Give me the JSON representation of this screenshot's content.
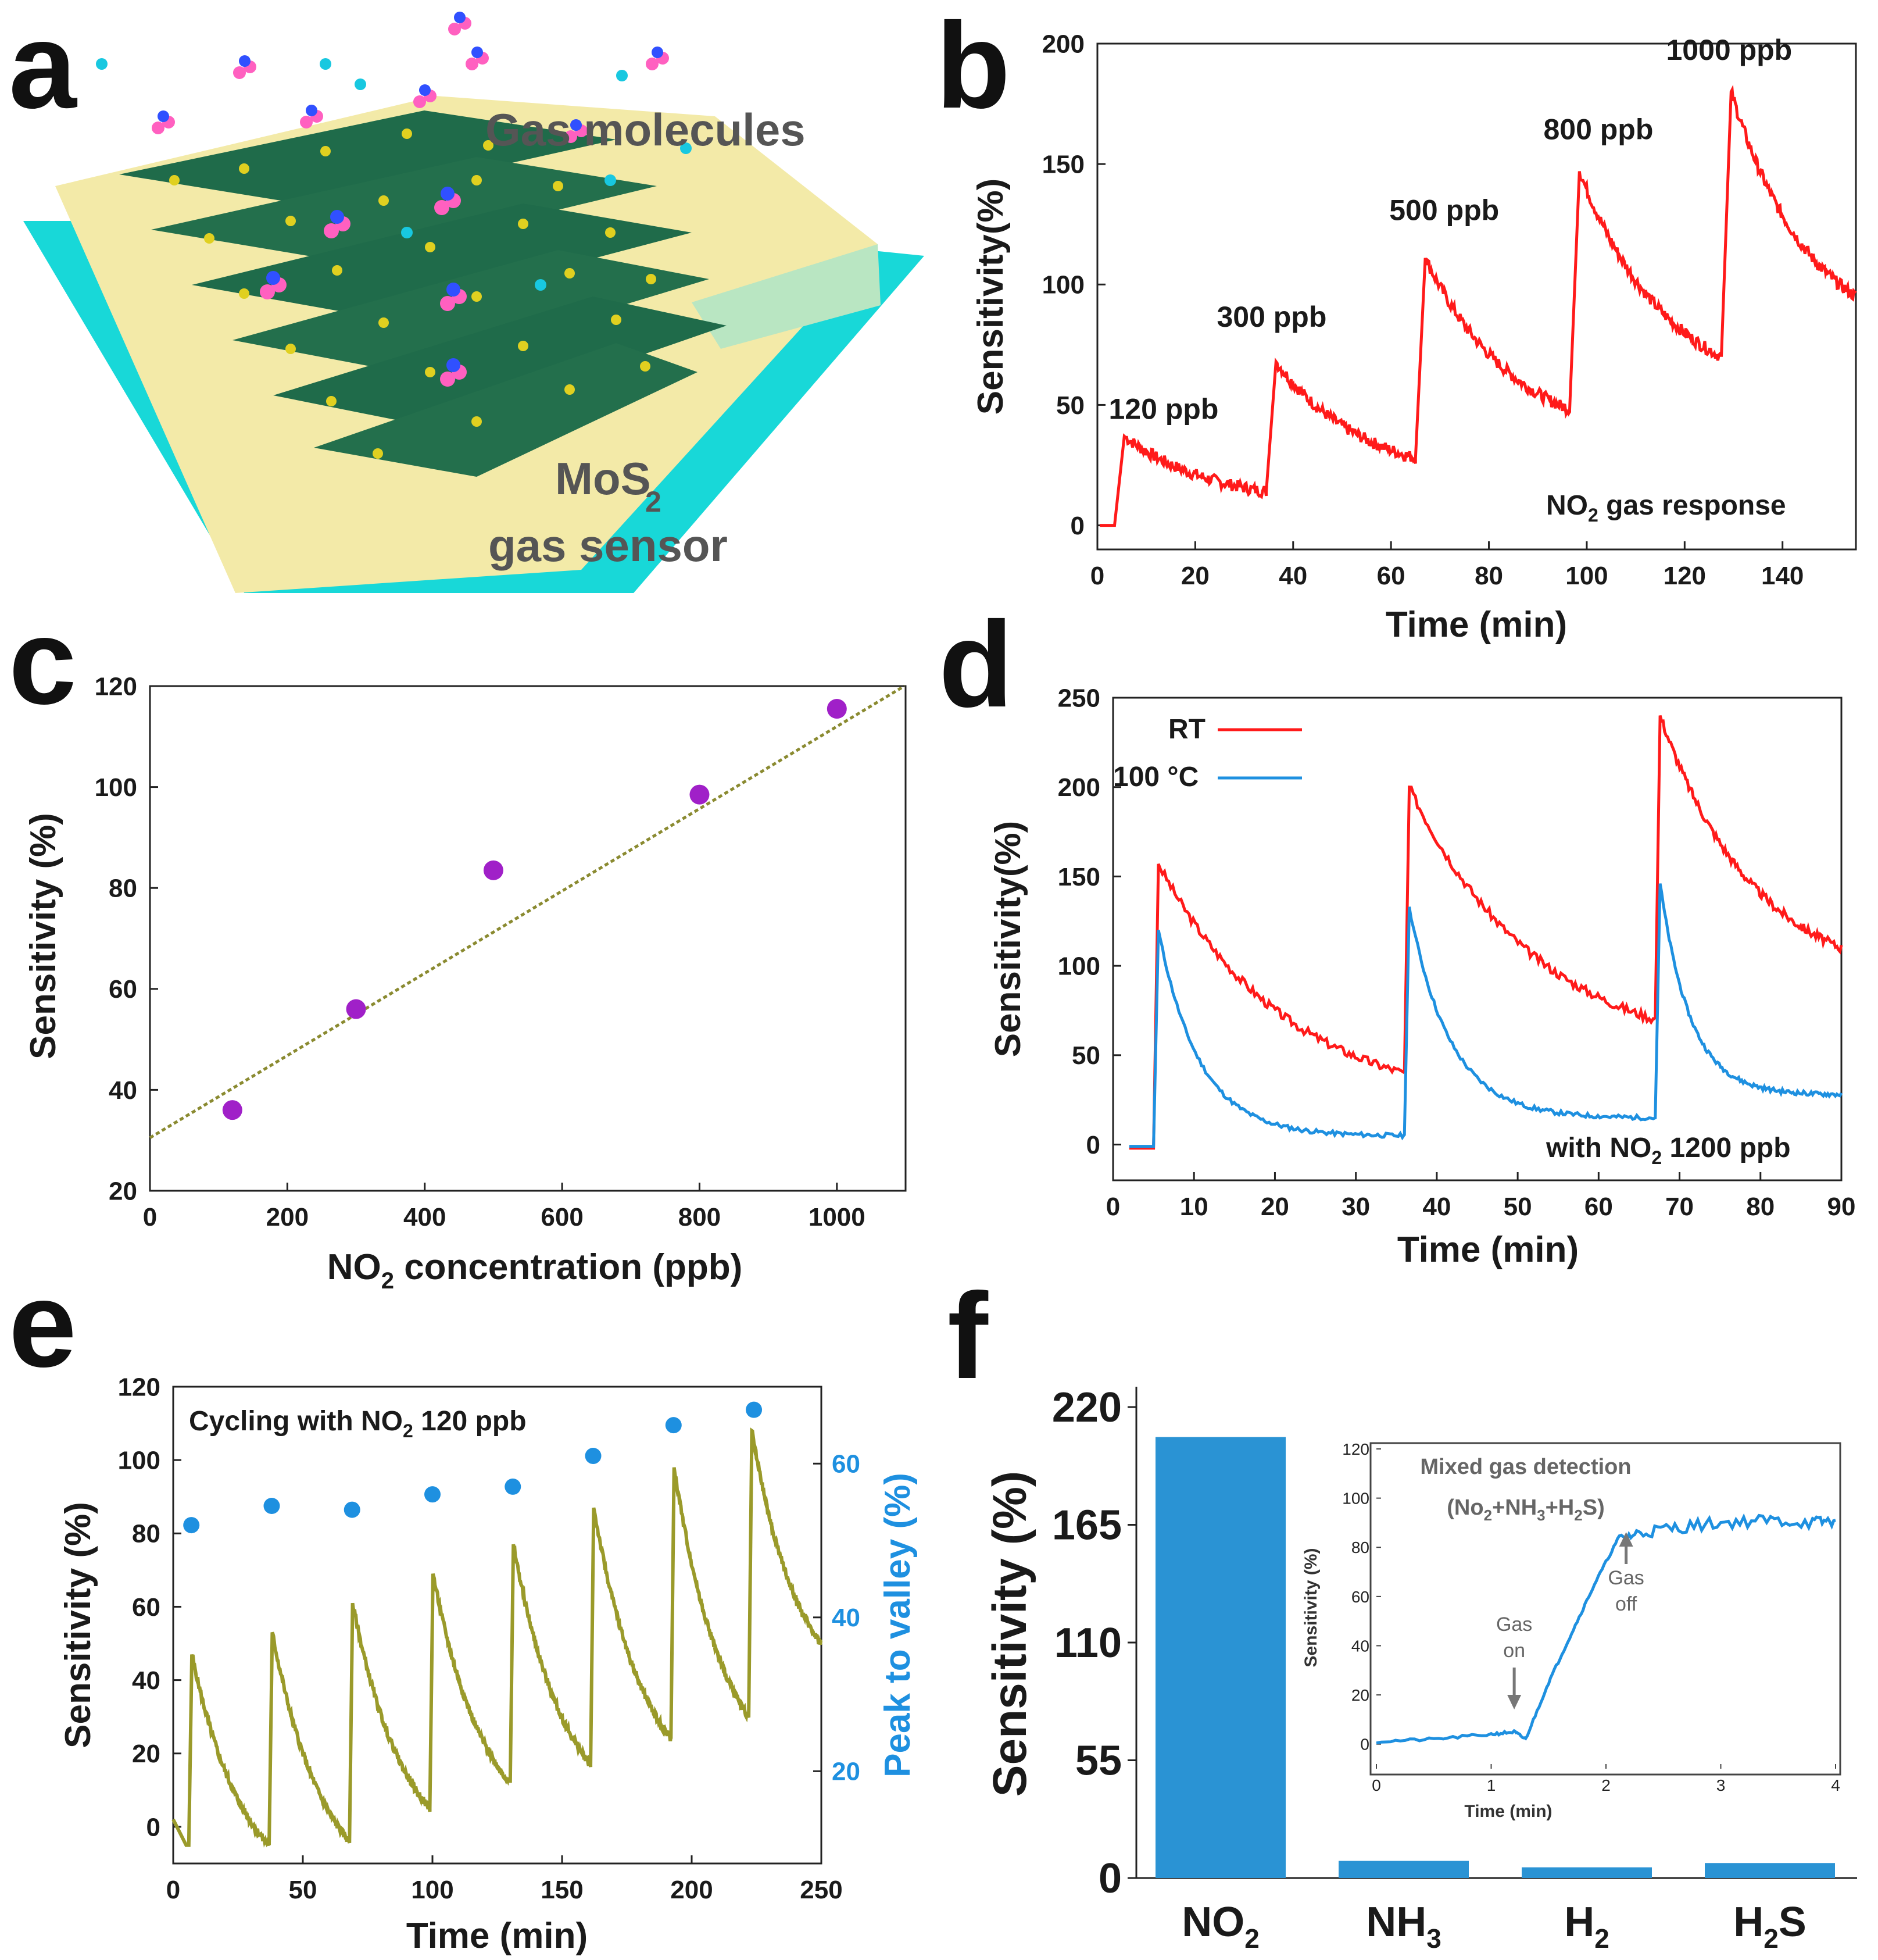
{
  "figure": {
    "panel_labels": [
      "a",
      "b",
      "c",
      "d",
      "e",
      "f"
    ],
    "schematic": {
      "label_gas": "Gas molecules",
      "label_mos2_1": "MoS",
      "label_mos2_sub": "2",
      "label_mos2_2": "gas sensor",
      "colors": {
        "substrate": "#18d8d8",
        "electrode": "#f0e6a0",
        "film": "#1f6b4a",
        "atom_s": "#e0d020",
        "mol_n": "#3050ff",
        "mol_o": "#ff60c0"
      }
    }
  },
  "chart_data": [
    {
      "id": "b",
      "type": "line",
      "xlabel": "Time (min)",
      "ylabel": "Sensitivity(%)",
      "xlim": [
        0,
        155
      ],
      "ylim": [
        -10,
        200
      ],
      "xticks": [
        0,
        20,
        40,
        60,
        80,
        100,
        120,
        140
      ],
      "yticks": [
        0,
        50,
        100,
        150,
        200
      ],
      "color": "#ff1a1a",
      "annotation": "NO2 gas response",
      "pulses": [
        {
          "label": "120 ppb",
          "on": 3.5,
          "off": 34.5,
          "base": 0,
          "peak": 37,
          "end": 14
        },
        {
          "label": "300 ppb",
          "on": 34.5,
          "off": 65,
          "base": 14,
          "peak": 68,
          "end": 28
        },
        {
          "label": "500 ppb",
          "on": 65,
          "off": 96.5,
          "base": 28,
          "peak": 111,
          "end": 48
        },
        {
          "label": "800 ppb",
          "on": 96.5,
          "off": 127.5,
          "base": 48,
          "peak": 147,
          "end": 70
        },
        {
          "label": "1000 ppb",
          "on": 127.5,
          "off": 155,
          "base": 70,
          "peak": 180,
          "end": 95
        }
      ]
    },
    {
      "id": "c",
      "type": "scatter",
      "xlabel": "NO2 concentration (ppb)",
      "ylabel": "Sensitivity (%)",
      "xlim": [
        0,
        1100
      ],
      "ylim": [
        20,
        120
      ],
      "xticks": [
        0,
        200,
        400,
        600,
        800,
        1000
      ],
      "yticks": [
        20,
        40,
        60,
        80,
        100,
        120
      ],
      "x": [
        120,
        300,
        500,
        800,
        1000
      ],
      "y": [
        36,
        56,
        83.5,
        98.5,
        115.5
      ],
      "fit": {
        "slope": 0.0815,
        "intercept": 30.5
      },
      "point_color": "#a020c8",
      "fit_color": "#8a8a30"
    },
    {
      "id": "d",
      "type": "line",
      "xlabel": "Time (min)",
      "ylabel": "Sensitivity(%)",
      "xlim": [
        0,
        90
      ],
      "ylim": [
        -20,
        250
      ],
      "xticks": [
        0,
        10,
        20,
        30,
        40,
        50,
        60,
        70,
        80,
        90
      ],
      "yticks": [
        0,
        50,
        100,
        150,
        200,
        250
      ],
      "annotation": "with NO2 1200 ppb",
      "series": [
        {
          "name": "RT",
          "color": "#ff1a1a",
          "pulses": [
            {
              "on": 5,
              "off": 36,
              "base": -2,
              "peak": 157,
              "end": 40
            },
            {
              "on": 36,
              "off": 67,
              "base": 40,
              "peak": 200,
              "end": 70
            },
            {
              "on": 67,
              "off": 90,
              "base": 70,
              "peak": 240,
              "end": 110
            }
          ]
        },
        {
          "name": "100 °C",
          "color": "#1e90e0",
          "pulses": [
            {
              "on": 5,
              "off": 36,
              "base": -1,
              "peak": 120,
              "end": 5
            },
            {
              "on": 36,
              "off": 67,
              "base": 5,
              "peak": 133,
              "end": 15
            },
            {
              "on": 67,
              "off": 90,
              "base": 15,
              "peak": 146,
              "end": 28
            }
          ]
        }
      ]
    },
    {
      "id": "e",
      "type": "line",
      "xlabel": "Time (min)",
      "ylabel": "Sensitivity (%)",
      "ylabel2": "Peak to valley (%)",
      "xlim": [
        0,
        250
      ],
      "ylim": [
        -10,
        120
      ],
      "ylim2": [
        8,
        70
      ],
      "xticks": [
        0,
        50,
        100,
        150,
        200,
        250
      ],
      "yticks": [
        0,
        20,
        40,
        60,
        80,
        100,
        120
      ],
      "yticks2": [
        20,
        40,
        60
      ],
      "annotation": "Cycling with NO2 120 ppb",
      "line_color": "#9a9a2a",
      "dot_color": "#1e90e0",
      "cycles": [
        {
          "on": 6,
          "peak": 47,
          "valley": -5
        },
        {
          "on": 37,
          "peak": 53,
          "valley": -4
        },
        {
          "on": 68,
          "peak": 61,
          "valley": 5
        },
        {
          "on": 99,
          "peak": 69,
          "valley": 12
        },
        {
          "on": 130,
          "peak": 77,
          "valley": 17
        },
        {
          "on": 161,
          "peak": 87,
          "valley": 24
        },
        {
          "on": 192,
          "peak": 98,
          "valley": 30
        },
        {
          "on": 222,
          "peak": 108,
          "valley": 37
        }
      ],
      "end": {
        "x": 250,
        "y": 50
      },
      "peak_to_valley": {
        "x": [
          7,
          38,
          69,
          100,
          131,
          162,
          193,
          224
        ],
        "y": [
          52,
          54.5,
          54,
          56,
          57,
          61,
          65,
          67
        ]
      }
    },
    {
      "id": "f",
      "type": "bar",
      "ylabel": "Sensitivity (%)",
      "ylim": [
        0,
        220
      ],
      "yticks": [
        0,
        55,
        110,
        165,
        220
      ],
      "categories": [
        "NO2",
        "NH3",
        "H2",
        "H2S"
      ],
      "values": [
        206,
        8,
        5,
        7
      ],
      "color": "#2a93d4",
      "inset": {
        "type": "line",
        "title1": "Mixed gas detection",
        "title2": "(No2+NH3+H2S)",
        "xlabel": "Time (min)",
        "ylabel": "Sensitivity (%)",
        "xlim": [
          0,
          4
        ],
        "ylim": [
          -10,
          120
        ],
        "xticks": [
          0,
          1,
          2,
          3,
          4
        ],
        "yticks": [
          0,
          20,
          40,
          60,
          80,
          100,
          120
        ],
        "gas_on": "Gas on",
        "gas_off": "Gas off",
        "gas_on_x": 1.15,
        "gas_off_x": 2.15,
        "color": "#1e90e0",
        "x": [
          0,
          0.5,
          1.0,
          1.2,
          1.3,
          1.5,
          1.7,
          1.9,
          2.1,
          2.3,
          2.6,
          3.0,
          3.4,
          3.8,
          4.0
        ],
        "y": [
          1,
          2,
          4,
          5,
          2,
          25,
          45,
          65,
          83,
          86,
          88,
          90,
          91,
          90,
          91
        ]
      }
    }
  ]
}
